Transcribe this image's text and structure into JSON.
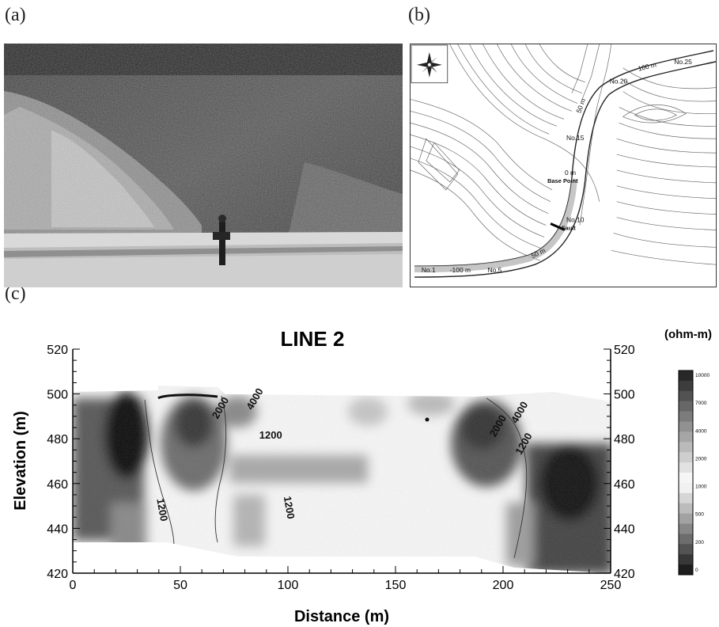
{
  "panels": {
    "a": "(a)",
    "b": "(b)",
    "c": "(c)"
  },
  "map": {
    "stations": [
      "No.25",
      "No.20",
      "No.15",
      "No.10",
      "No.5",
      "No.1"
    ],
    "distances": [
      "100 m",
      "50 m",
      "0 m",
      "50 m",
      "-100 m"
    ],
    "base_point": "Base Point",
    "fault": "Fault"
  },
  "chart_data": {
    "type": "heatmap",
    "title": "LINE 2",
    "xlabel": "Distance (m)",
    "ylabel": "Elevation (m)",
    "xlim": [
      0,
      250
    ],
    "ylim": [
      420,
      520
    ],
    "x_ticks": [
      0,
      50,
      100,
      150,
      200,
      250
    ],
    "y_ticks": [
      420,
      440,
      460,
      480,
      500,
      520
    ],
    "contour_labels": [
      {
        "text": "4000",
        "x": 86,
        "y": 497
      },
      {
        "text": "2000",
        "x": 70,
        "y": 493
      },
      {
        "text": "1200",
        "x": 92,
        "y": 480
      },
      {
        "text": "1200",
        "x": 40,
        "y": 448
      },
      {
        "text": "1200",
        "x": 99,
        "y": 449
      },
      {
        "text": "2000",
        "x": 199,
        "y": 485
      },
      {
        "text": "4000",
        "x": 209,
        "y": 491
      },
      {
        "text": "1200",
        "x": 211,
        "y": 477
      }
    ],
    "colorbar": {
      "unit": "(ohm-m)",
      "levels": [
        "10000",
        "7000",
        "4000",
        "2000",
        "1000",
        "500",
        "200",
        "0"
      ]
    }
  }
}
